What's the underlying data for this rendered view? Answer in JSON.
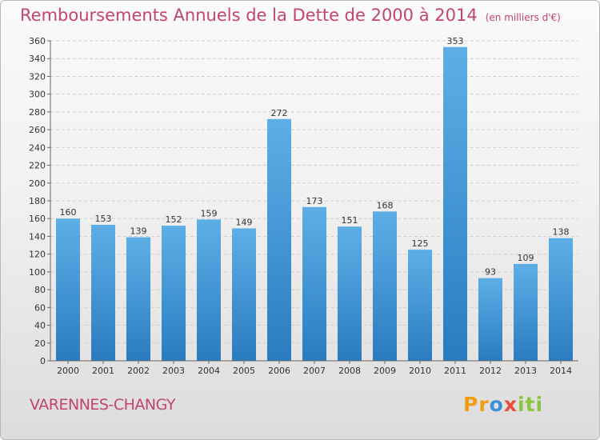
{
  "chart_data": {
    "type": "bar",
    "title": "Remboursements Annuels de la Dette de 2000 à 2014",
    "unit_label": "(en milliers d'€)",
    "categories": [
      "2000",
      "2001",
      "2002",
      "2003",
      "2004",
      "2005",
      "2006",
      "2007",
      "2008",
      "2009",
      "2010",
      "2011",
      "2012",
      "2013",
      "2014"
    ],
    "values": [
      160,
      153,
      139,
      152,
      159,
      149,
      272,
      173,
      151,
      168,
      125,
      353,
      93,
      109,
      138
    ],
    "ylim": [
      0,
      360
    ],
    "yticks": [
      0,
      20,
      40,
      60,
      80,
      100,
      120,
      140,
      160,
      180,
      200,
      220,
      240,
      260,
      280,
      300,
      320,
      340,
      360
    ],
    "grid": true,
    "legend": "none",
    "bar_color_light": "#5eaee6",
    "bar_color_dark": "#2a7cc0",
    "label_color": "#333333"
  },
  "footer": {
    "commune": "VARENNES-CHANGY",
    "logo_text": "Proxiti"
  },
  "colors": {
    "title": "#c2456e",
    "grid": "#cfcfcf",
    "axis": "#666666"
  }
}
